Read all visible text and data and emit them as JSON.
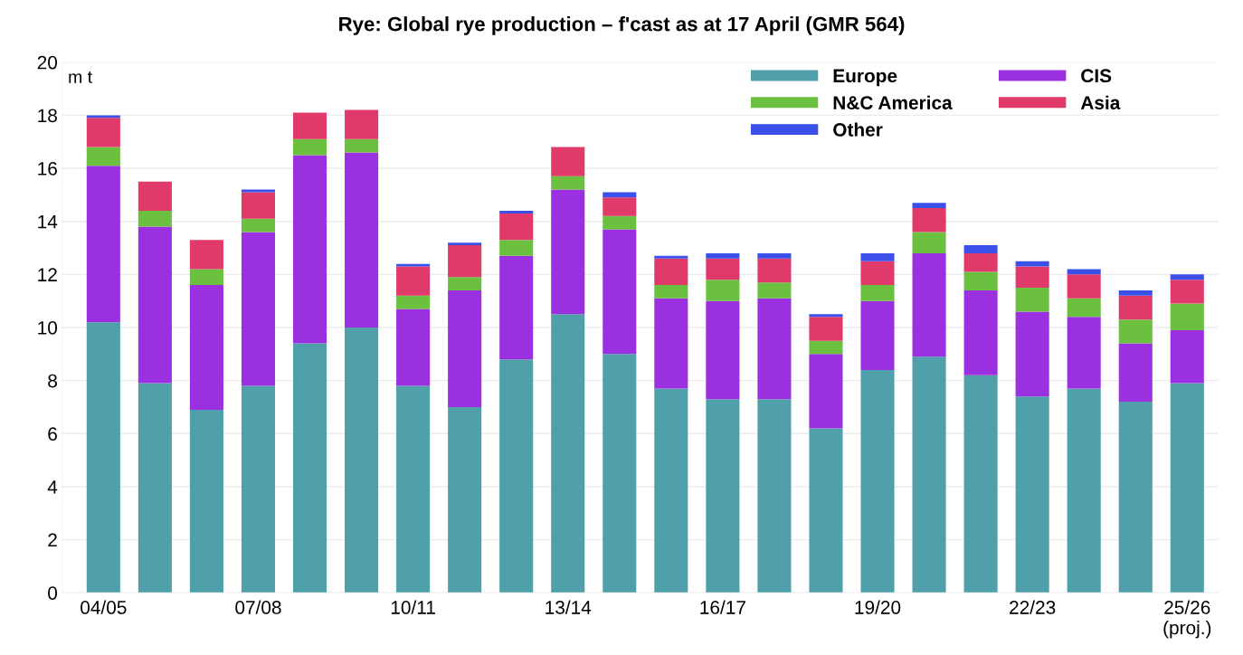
{
  "chart_data": {
    "type": "bar",
    "stacked": true,
    "title": "Rye: Global rye production – f'cast as at 17 April (GMR 564)",
    "ylabel": "m t",
    "categories": [
      "04/05",
      null,
      null,
      "07/08",
      null,
      null,
      "10/11",
      null,
      null,
      "13/14",
      null,
      null,
      "16/17",
      null,
      null,
      "19/20",
      null,
      null,
      "22/23",
      null,
      null,
      "25/26\n(proj.)"
    ],
    "series": [
      {
        "name": "Europe",
        "color": "#4fa0ab",
        "values": [
          10.2,
          7.9,
          6.9,
          7.8,
          9.4,
          10.0,
          7.8,
          7.0,
          8.8,
          10.5,
          9.0,
          7.7,
          7.3,
          7.3,
          6.2,
          8.4,
          8.9,
          8.2,
          7.4,
          7.7,
          7.2,
          7.9
        ]
      },
      {
        "name": "CIS",
        "color": "#9b30e0",
        "values": [
          5.9,
          5.9,
          4.7,
          5.8,
          7.1,
          6.6,
          2.9,
          4.4,
          3.9,
          4.7,
          4.7,
          3.4,
          3.7,
          3.8,
          2.8,
          2.6,
          3.9,
          3.2,
          3.2,
          2.7,
          2.2,
          2.0
        ]
      },
      {
        "name": "N&C America",
        "color": "#6cc040",
        "values": [
          0.7,
          0.6,
          0.6,
          0.5,
          0.6,
          0.5,
          0.5,
          0.5,
          0.6,
          0.5,
          0.5,
          0.5,
          0.8,
          0.6,
          0.5,
          0.6,
          0.8,
          0.7,
          0.9,
          0.7,
          0.9,
          1.0
        ]
      },
      {
        "name": "Asia",
        "color": "#e03a6a",
        "values": [
          1.1,
          1.1,
          1.1,
          1.0,
          1.0,
          1.1,
          1.1,
          1.2,
          1.0,
          1.1,
          0.7,
          1.0,
          0.8,
          0.9,
          0.9,
          0.9,
          0.9,
          0.7,
          0.8,
          0.9,
          0.9,
          0.9
        ]
      },
      {
        "name": "Other",
        "color": "#3a50e8",
        "values": [
          0.1,
          0.0,
          0.0,
          0.1,
          0.0,
          0.0,
          0.1,
          0.1,
          0.1,
          0.0,
          0.2,
          0.1,
          0.2,
          0.2,
          0.1,
          0.3,
          0.2,
          0.3,
          0.2,
          0.2,
          0.2,
          0.2
        ]
      }
    ],
    "ylim": [
      0,
      20
    ],
    "yticks": [
      0,
      2,
      4,
      6,
      8,
      10,
      12,
      14,
      16,
      18,
      20
    ],
    "grid": "y",
    "legend": "top right"
  }
}
